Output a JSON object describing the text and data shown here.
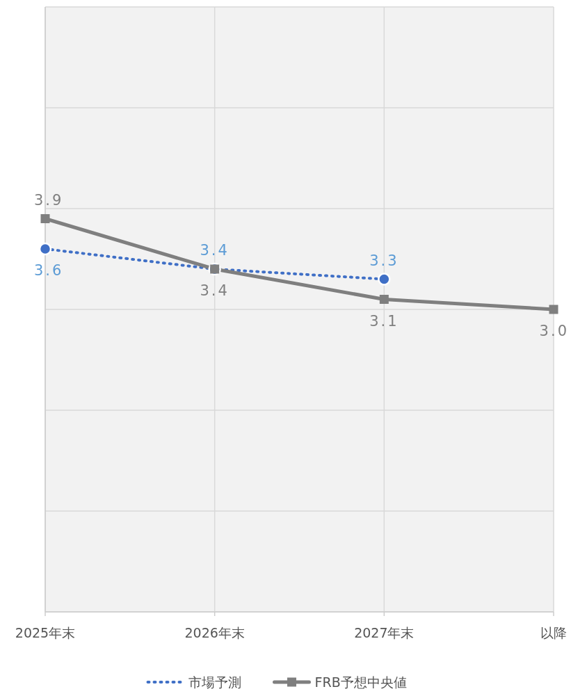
{
  "chart_data": {
    "type": "line",
    "categories": [
      "2025年末",
      "2026年末",
      "2027年末",
      "以降"
    ],
    "series": [
      {
        "name": "市場予測",
        "color": "#3f6fc6",
        "values": [
          3.6,
          3.4,
          3.3,
          null
        ],
        "value_labels": [
          "3.6",
          "3.4",
          "3.3",
          null
        ],
        "marker": "circle",
        "line_style": "dotted"
      },
      {
        "name": "FRB予想中央値",
        "color": "#7f7f7f",
        "values": [
          3.9,
          3.4,
          3.1,
          3.0
        ],
        "value_labels": [
          "3.9",
          "3.4",
          "3.1",
          "3.0"
        ],
        "marker": "square",
        "line_style": "solid"
      }
    ],
    "ylim": [
      0,
      6
    ],
    "yticks": [
      {
        "value": 0,
        "label": null
      },
      {
        "value": 1,
        "label": null
      },
      {
        "value": 2,
        "label": null
      },
      {
        "value": 3,
        "label": null
      },
      {
        "value": 4,
        "label": null
      },
      {
        "value": 5,
        "label": null
      },
      {
        "value": 6,
        "label": null
      }
    ],
    "tick_labels": "x",
    "grid": true,
    "legend": "bottom"
  }
}
